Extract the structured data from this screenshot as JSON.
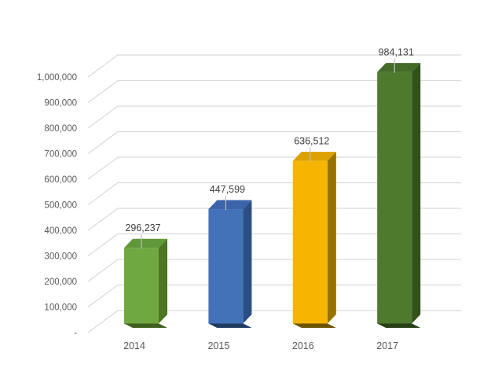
{
  "page": {
    "background_color": "#ffffff"
  },
  "chart_data": {
    "type": "bar",
    "style": "3d-column",
    "title": "",
    "legend": "none",
    "grid": true,
    "categories": [
      "2014",
      "2015",
      "2016",
      "2017"
    ],
    "values": [
      296237,
      447599,
      636512,
      984131
    ],
    "data_labels": [
      "296,237",
      "447,599",
      "636,512",
      "984,131"
    ],
    "bar_colors": [
      {
        "front": "#6FA841",
        "top": "#609738",
        "side": "#4C7524",
        "base": "#3E5F1E"
      },
      {
        "front": "#4472B9",
        "top": "#3B65A8",
        "side": "#2B4F85",
        "base": "#1F3A63"
      },
      {
        "front": "#F6B500",
        "top": "#DCA100",
        "side": "#967200",
        "base": "#6E5400"
      },
      {
        "front": "#4E7A2D",
        "top": "#446A27",
        "side": "#33511B",
        "base": "#273F15"
      }
    ],
    "y_axis": {
      "min": 0,
      "max": 1000000,
      "step": 100000,
      "tick_labels": [
        "-",
        "100,000",
        "200,000",
        "300,000",
        "400,000",
        "500,000",
        "600,000",
        "700,000",
        "800,000",
        "900,000",
        "1,000,000"
      ]
    },
    "colors": {
      "gridline": "#D9D9D9",
      "axis_label": "#595959",
      "data_label": "#404040",
      "leader_line": "#BFBFBF"
    }
  }
}
